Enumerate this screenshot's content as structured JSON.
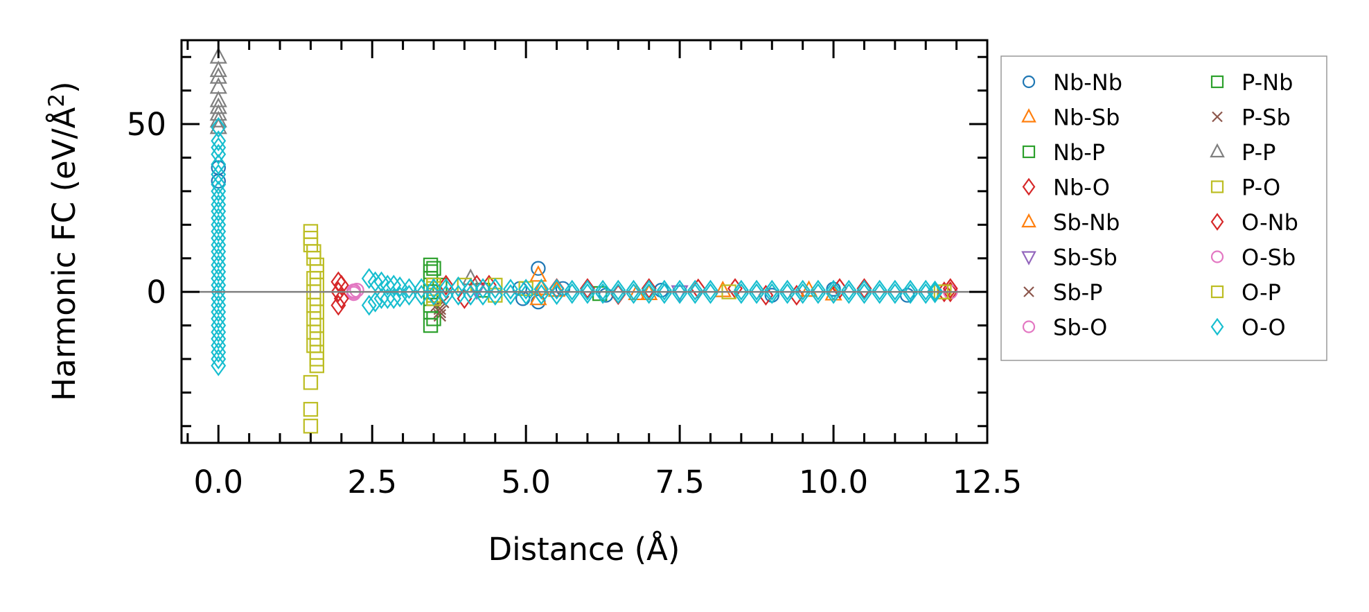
{
  "chart_data": {
    "type": "scatter",
    "title": "",
    "xlabel": "Distance (Å)",
    "ylabel": "Harmonic FC (eV/Å²)",
    "ylabel_parts": {
      "main": "Harmonic FC (eV/Å",
      "sup": "2",
      "close": ")"
    },
    "xlim": [
      -0.6,
      12.5
    ],
    "ylim": [
      -45,
      75
    ],
    "xticks": [
      0.0,
      2.5,
      5.0,
      7.5,
      10.0,
      12.5
    ],
    "xtick_labels": [
      "0.0",
      "2.5",
      "5.0",
      "7.5",
      "10.0",
      "12.5"
    ],
    "yticks": [
      0,
      50
    ],
    "ytick_labels": [
      "0",
      "50"
    ],
    "x_minor_step": 0.5,
    "y_minor_step": 10,
    "zero_line": true,
    "grid": false,
    "legend": {
      "placement": "outside-right",
      "columns": 2
    },
    "series": [
      {
        "name": "Nb-Nb",
        "marker": "circle",
        "color": "#1f77b4",
        "points": [
          [
            0,
            37
          ],
          [
            0,
            33
          ],
          [
            4.9,
            1
          ],
          [
            4.95,
            -2
          ],
          [
            5.2,
            7
          ],
          [
            5.2,
            -3
          ],
          [
            5.6,
            1
          ],
          [
            6.3,
            -1
          ],
          [
            7.2,
            0.5
          ],
          [
            9.0,
            -1
          ],
          [
            10.0,
            0.8
          ],
          [
            11.2,
            -1
          ]
        ]
      },
      {
        "name": "Nb-Sb",
        "marker": "triangle-up",
        "color": "#ff7f0e",
        "points": [
          [
            5.2,
            5
          ],
          [
            5.2,
            -2
          ],
          [
            5.5,
            0.5
          ],
          [
            7.0,
            -0.5
          ],
          [
            8.2,
            0.4
          ],
          [
            10.0,
            -0.6
          ]
        ]
      },
      {
        "name": "Nb-P",
        "marker": "square",
        "color": "#2ca02c",
        "points": [
          [
            3.5,
            -1
          ],
          [
            3.6,
            2
          ],
          [
            4.3,
            0.5
          ],
          [
            6.2,
            -0.5
          ]
        ]
      },
      {
        "name": "Nb-O",
        "marker": "diamond",
        "color": "#d62728",
        "points": [
          [
            1.95,
            -4
          ],
          [
            1.95,
            3
          ],
          [
            1.95,
            0
          ],
          [
            3.7,
            2
          ],
          [
            4.0,
            -2
          ],
          [
            4.4,
            2
          ],
          [
            6.0,
            1
          ],
          [
            6.5,
            -0.8
          ],
          [
            7.8,
            0.9
          ],
          [
            8.4,
            1
          ],
          [
            9.4,
            -1
          ],
          [
            10.1,
            1
          ],
          [
            11.8,
            0
          ],
          [
            11.9,
            0
          ]
        ]
      },
      {
        "name": "Sb-Nb",
        "marker": "triangle-up",
        "color": "#ff7f0e",
        "points": [
          [
            5.25,
            1
          ],
          [
            6.8,
            -0.5
          ],
          [
            9.6,
            0.5
          ]
        ]
      },
      {
        "name": "Sb-Sb",
        "marker": "triangle-down",
        "color": "#9467bd",
        "points": [
          [
            4.2,
            0.5
          ],
          [
            7.5,
            0
          ]
        ]
      },
      {
        "name": "Sb-P",
        "marker": "x",
        "color": "#8c564b",
        "points": [
          [
            3.6,
            -5
          ],
          [
            3.6,
            -7
          ],
          [
            3.65,
            -3
          ]
        ]
      },
      {
        "name": "Sb-O",
        "marker": "circle",
        "color": "#e377c2",
        "points": [
          [
            2.2,
            0
          ],
          [
            2.25,
            0.5
          ],
          [
            2.2,
            -0.5
          ],
          [
            11.9,
            0
          ]
        ]
      },
      {
        "name": "P-Nb",
        "marker": "square",
        "color": "#2ca02c",
        "points": [
          [
            3.45,
            8
          ],
          [
            3.45,
            -10
          ],
          [
            3.45,
            4
          ],
          [
            3.45,
            -4
          ],
          [
            3.5,
            7
          ],
          [
            3.5,
            -8
          ],
          [
            3.45,
            0
          ],
          [
            3.5,
            2
          ],
          [
            3.5,
            -2
          ],
          [
            3.45,
            6
          ],
          [
            3.45,
            -6
          ]
        ]
      },
      {
        "name": "P-Sb",
        "marker": "x",
        "color": "#8c564b",
        "points": [
          [
            3.6,
            -6
          ],
          [
            3.55,
            -4
          ]
        ]
      },
      {
        "name": "P-P",
        "marker": "triangle-up",
        "color": "#7f7f7f",
        "points": [
          [
            0,
            70
          ],
          [
            0,
            66
          ],
          [
            0,
            64
          ],
          [
            0,
            61
          ],
          [
            0,
            57
          ],
          [
            0,
            55
          ],
          [
            0,
            53
          ],
          [
            0,
            51
          ],
          [
            0,
            49
          ],
          [
            4.1,
            4
          ]
        ]
      },
      {
        "name": "P-O",
        "marker": "square",
        "color": "#bcbd22",
        "points": [
          [
            1.5,
            18
          ],
          [
            1.5,
            16
          ],
          [
            1.5,
            14
          ],
          [
            1.55,
            12
          ],
          [
            1.55,
            10
          ],
          [
            1.6,
            8
          ],
          [
            1.6,
            6
          ],
          [
            1.55,
            4
          ],
          [
            1.6,
            2
          ],
          [
            1.55,
            0
          ],
          [
            1.6,
            -2
          ],
          [
            1.55,
            -4
          ],
          [
            1.6,
            -6
          ],
          [
            1.55,
            -8
          ],
          [
            1.6,
            -10
          ],
          [
            1.55,
            -12
          ],
          [
            1.6,
            -14
          ],
          [
            1.55,
            -16
          ],
          [
            1.6,
            -18
          ],
          [
            1.6,
            -20
          ],
          [
            1.6,
            -22
          ],
          [
            1.5,
            -27
          ],
          [
            1.5,
            -35
          ],
          [
            1.5,
            -40
          ],
          [
            3.5,
            1
          ],
          [
            3.5,
            -1
          ],
          [
            4.0,
            2
          ],
          [
            4.5,
            2
          ],
          [
            5.0,
            1
          ],
          [
            11.8,
            0
          ]
        ]
      },
      {
        "name": "O-Nb",
        "marker": "diamond",
        "color": "#d62728",
        "points": [
          [
            2.0,
            2
          ],
          [
            2.0,
            -2
          ],
          [
            4.2,
            2
          ],
          [
            5.5,
            1
          ],
          [
            7.0,
            1
          ],
          [
            8.9,
            -1
          ],
          [
            10.5,
            1
          ],
          [
            11.9,
            1
          ]
        ]
      },
      {
        "name": "O-Sb",
        "marker": "circle",
        "color": "#e377c2",
        "points": [
          [
            2.2,
            0.3
          ]
        ]
      },
      {
        "name": "O-P",
        "marker": "square",
        "color": "#bcbd22",
        "points": [
          [
            3.5,
            2
          ],
          [
            3.5,
            -2
          ],
          [
            4.5,
            -1
          ],
          [
            8.3,
            0
          ],
          [
            11.75,
            0
          ]
        ]
      },
      {
        "name": "O-O",
        "marker": "diamond",
        "color": "#17becf",
        "points": [
          [
            0,
            49
          ],
          [
            0,
            45
          ],
          [
            0,
            43
          ],
          [
            0,
            41
          ],
          [
            0,
            38
          ],
          [
            0,
            35
          ],
          [
            0,
            32
          ],
          [
            0,
            30
          ],
          [
            0,
            28
          ],
          [
            0,
            26
          ],
          [
            0,
            24
          ],
          [
            0,
            22
          ],
          [
            0,
            20
          ],
          [
            0,
            18
          ],
          [
            0,
            16
          ],
          [
            0,
            14
          ],
          [
            0,
            12
          ],
          [
            0,
            10
          ],
          [
            0,
            8
          ],
          [
            0,
            6
          ],
          [
            0,
            4
          ],
          [
            0,
            2
          ],
          [
            0,
            0
          ],
          [
            0,
            -2
          ],
          [
            0,
            -4
          ],
          [
            0,
            -6
          ],
          [
            0,
            -8
          ],
          [
            0,
            -10
          ],
          [
            0,
            -12
          ],
          [
            0,
            -14
          ],
          [
            0,
            -16
          ],
          [
            0,
            -18
          ],
          [
            0,
            -20
          ],
          [
            0,
            -22
          ],
          [
            2.45,
            4
          ],
          [
            2.45,
            -4
          ],
          [
            2.55,
            3
          ],
          [
            2.55,
            -3
          ],
          [
            2.65,
            3
          ],
          [
            2.65,
            -2
          ],
          [
            2.75,
            2
          ],
          [
            2.75,
            -2
          ],
          [
            2.85,
            2
          ],
          [
            2.85,
            -2
          ],
          [
            2.95,
            1.5
          ],
          [
            2.95,
            -1.5
          ],
          [
            3.1,
            1
          ],
          [
            3.1,
            -1
          ],
          [
            3.3,
            1
          ],
          [
            3.3,
            -1
          ],
          [
            3.5,
            1
          ],
          [
            3.5,
            -1
          ],
          [
            3.7,
            1
          ],
          [
            3.7,
            -1
          ],
          [
            3.9,
            1.5
          ],
          [
            3.9,
            -1
          ],
          [
            4.1,
            1
          ],
          [
            4.1,
            -1
          ],
          [
            4.3,
            1
          ],
          [
            4.3,
            -1
          ],
          [
            4.5,
            1
          ],
          [
            4.5,
            -1
          ],
          [
            4.75,
            0.8
          ],
          [
            4.75,
            -0.8
          ],
          [
            5.0,
            0.8
          ],
          [
            5.0,
            -0.8
          ],
          [
            5.25,
            0.8
          ],
          [
            5.25,
            -0.8
          ],
          [
            5.5,
            0.8
          ],
          [
            5.5,
            -0.8
          ],
          [
            5.75,
            0.5
          ],
          [
            5.75,
            -0.5
          ],
          [
            6.0,
            0.5
          ],
          [
            6.0,
            -0.5
          ],
          [
            6.25,
            0.5
          ],
          [
            6.25,
            -0.5
          ],
          [
            6.5,
            0.5
          ],
          [
            6.5,
            -0.5
          ],
          [
            6.75,
            0.5
          ],
          [
            6.75,
            -0.5
          ],
          [
            7.0,
            0.5
          ],
          [
            7.0,
            -0.5
          ],
          [
            7.25,
            0.5
          ],
          [
            7.25,
            -0.5
          ],
          [
            7.5,
            0.5
          ],
          [
            7.5,
            -0.5
          ],
          [
            7.75,
            0.5
          ],
          [
            7.75,
            -0.5
          ],
          [
            8.0,
            0.5
          ],
          [
            8.0,
            -0.5
          ],
          [
            8.5,
            0.5
          ],
          [
            8.5,
            -0.5
          ],
          [
            8.75,
            0.5
          ],
          [
            8.75,
            -0.5
          ],
          [
            9.0,
            0.5
          ],
          [
            9.0,
            -0.5
          ],
          [
            9.25,
            0.5
          ],
          [
            9.25,
            -0.5
          ],
          [
            9.5,
            0.5
          ],
          [
            9.5,
            -0.5
          ],
          [
            9.75,
            0.5
          ],
          [
            9.75,
            -0.5
          ],
          [
            10.0,
            0.5
          ],
          [
            10.0,
            -0.5
          ],
          [
            10.25,
            0.5
          ],
          [
            10.25,
            -0.5
          ],
          [
            10.5,
            0.5
          ],
          [
            10.5,
            -0.5
          ],
          [
            10.75,
            0.5
          ],
          [
            10.75,
            -0.5
          ],
          [
            11.0,
            0.5
          ],
          [
            11.0,
            -0.5
          ],
          [
            11.25,
            0.5
          ],
          [
            11.25,
            -0.5
          ],
          [
            11.5,
            0.5
          ],
          [
            11.5,
            -0.5
          ],
          [
            11.65,
            0.3
          ],
          [
            11.65,
            -0.3
          ]
        ]
      }
    ]
  }
}
